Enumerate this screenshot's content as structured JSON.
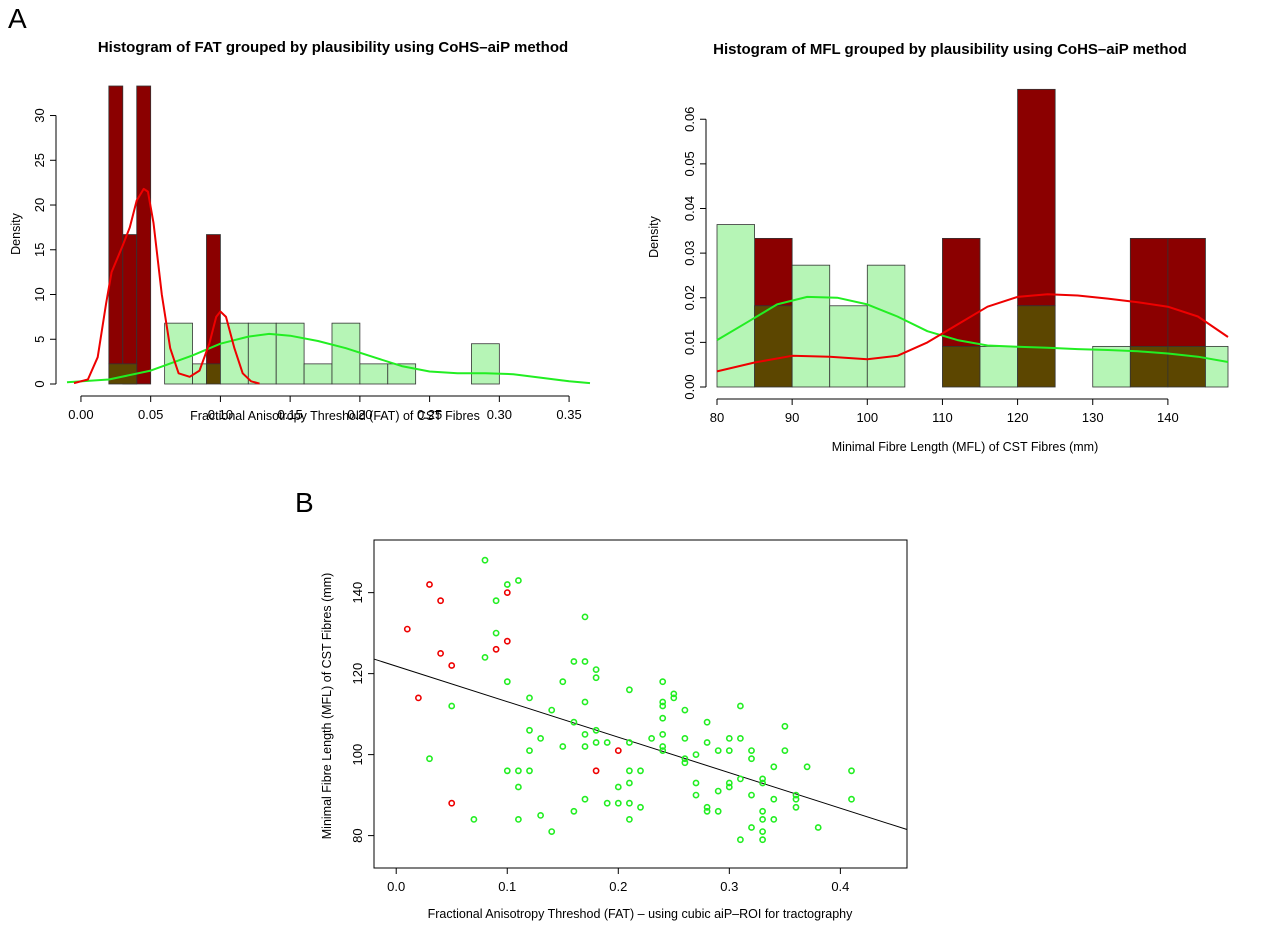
{
  "panels": {
    "a": "A",
    "b": "B"
  },
  "colors": {
    "implausible_fill": "#8b0000",
    "plausible_fill": "#b6f5b6",
    "overlap_fill": "#5c4600",
    "implausible_line": "#ee0000",
    "plausible_line": "#22ee22",
    "regression": "#000000"
  },
  "chart_data": [
    {
      "type": "bar",
      "title": "Histogram of FAT grouped by plausibility using CoHS–aiP method",
      "xlabel": "Fractional Anisotropy Threshold (FAT) of CST Fibres",
      "ylabel": "Density",
      "xlim": [
        -0.01,
        0.365
      ],
      "ylim": [
        0,
        33.3
      ],
      "xticks": [
        0,
        0.05,
        0.1,
        0.15,
        0.2,
        0.25,
        0.3,
        0.35
      ],
      "xtick_labels": [
        "0.00",
        "0.05",
        "0.10",
        "0.15",
        "0.20",
        "0.25",
        "0.30",
        "0.35"
      ],
      "yticks": [
        0,
        5,
        10,
        15,
        20,
        25,
        30
      ],
      "ytick_labels": [
        "0",
        "5",
        "10",
        "15",
        "20",
        "25",
        "30"
      ],
      "grid": false,
      "series": [
        {
          "name": "",
          "bins": [
            [
              0.02,
              0.03,
              33.3
            ],
            [
              0.03,
              0.04,
              16.7
            ],
            [
              0.04,
              0.05,
              33.3
            ],
            [
              0.09,
              0.1,
              16.7
            ]
          ],
          "density_curve": [
            [
              -0.005,
              0.1
            ],
            [
              0.005,
              0.5
            ],
            [
              0.012,
              3
            ],
            [
              0.018,
              9
            ],
            [
              0.022,
              12.5
            ],
            [
              0.03,
              15.5
            ],
            [
              0.035,
              17.5
            ],
            [
              0.04,
              20.5
            ],
            [
              0.045,
              21.8
            ],
            [
              0.048,
              21.5
            ],
            [
              0.052,
              18
            ],
            [
              0.058,
              10
            ],
            [
              0.064,
              4
            ],
            [
              0.07,
              1.2
            ],
            [
              0.078,
              0.8
            ],
            [
              0.085,
              1.5
            ],
            [
              0.092,
              4.5
            ],
            [
              0.097,
              7.5
            ],
            [
              0.1,
              8.1
            ],
            [
              0.104,
              7.5
            ],
            [
              0.11,
              4
            ],
            [
              0.116,
              1.2
            ],
            [
              0.122,
              0.3
            ],
            [
              0.128,
              0.05
            ]
          ]
        },
        {
          "name": "",
          "bins": [
            [
              0.02,
              0.04,
              2.25
            ],
            [
              0.06,
              0.08,
              6.8
            ],
            [
              0.08,
              0.09,
              2.25
            ],
            [
              0.09,
              0.1,
              2.25
            ],
            [
              0.1,
              0.12,
              6.8
            ],
            [
              0.12,
              0.14,
              6.8
            ],
            [
              0.14,
              0.16,
              6.8
            ],
            [
              0.16,
              0.18,
              2.25
            ],
            [
              0.18,
              0.2,
              6.8
            ],
            [
              0.2,
              0.22,
              2.25
            ],
            [
              0.22,
              0.24,
              2.25
            ],
            [
              0.28,
              0.3,
              4.5
            ]
          ],
          "density_curve": [
            [
              -0.01,
              0.2
            ],
            [
              0.02,
              0.5
            ],
            [
              0.05,
              1.5
            ],
            [
              0.08,
              3.2
            ],
            [
              0.1,
              4.5
            ],
            [
              0.12,
              5.3
            ],
            [
              0.135,
              5.6
            ],
            [
              0.15,
              5.4
            ],
            [
              0.17,
              4.8
            ],
            [
              0.19,
              4
            ],
            [
              0.21,
              3
            ],
            [
              0.23,
              2
            ],
            [
              0.25,
              1.4
            ],
            [
              0.27,
              1.2
            ],
            [
              0.29,
              1.2
            ],
            [
              0.31,
              1.1
            ],
            [
              0.33,
              0.7
            ],
            [
              0.35,
              0.3
            ],
            [
              0.365,
              0.1
            ]
          ]
        }
      ]
    },
    {
      "type": "bar",
      "title": "Histogram of MFL grouped by plausibility using CoHS–aiP method",
      "xlabel": "Minimal Fibre Length (MFL) of CST Fibres (mm)",
      "ylabel": "Density",
      "xlim": [
        80,
        148
      ],
      "ylim": [
        0,
        0.067
      ],
      "xticks": [
        80,
        90,
        100,
        110,
        120,
        130,
        140
      ],
      "xtick_labels": [
        "80",
        "90",
        "100",
        "110",
        "120",
        "130",
        "140"
      ],
      "yticks": [
        0,
        0.01,
        0.02,
        0.03,
        0.04,
        0.05,
        0.06
      ],
      "ytick_labels": [
        "0.00",
        "0.01",
        "0.02",
        "0.03",
        "0.04",
        "0.05",
        "0.06"
      ],
      "grid": false,
      "series": [
        {
          "name": "",
          "bins": [
            [
              85,
              90,
              0.0333
            ],
            [
              110,
              115,
              0.0333
            ],
            [
              120,
              125,
              0.0667
            ],
            [
              135,
              140,
              0.0333
            ],
            [
              140,
              145,
              0.0333
            ]
          ],
          "density_curve": [
            [
              80,
              0.0035
            ],
            [
              85,
              0.0055
            ],
            [
              90,
              0.007
            ],
            [
              95,
              0.0068
            ],
            [
              100,
              0.0062
            ],
            [
              104,
              0.007
            ],
            [
              108,
              0.01
            ],
            [
              112,
              0.014
            ],
            [
              116,
              0.018
            ],
            [
              120,
              0.0202
            ],
            [
              124,
              0.0208
            ],
            [
              128,
              0.0205
            ],
            [
              132,
              0.0198
            ],
            [
              136,
              0.019
            ],
            [
              140,
              0.018
            ],
            [
              144,
              0.0158
            ],
            [
              148,
              0.0112
            ]
          ]
        },
        {
          "name": "",
          "bins": [
            [
              80,
              85,
              0.0364
            ],
            [
              85,
              90,
              0.0182
            ],
            [
              90,
              95,
              0.0273
            ],
            [
              95,
              100,
              0.0182
            ],
            [
              100,
              105,
              0.0273
            ],
            [
              110,
              115,
              0.0091
            ],
            [
              115,
              120,
              0.0091
            ],
            [
              120,
              125,
              0.0182
            ],
            [
              130,
              135,
              0.0091
            ],
            [
              135,
              140,
              0.0091
            ],
            [
              140,
              145,
              0.0091
            ],
            [
              145,
              148,
              0.0091
            ]
          ],
          "density_curve": [
            [
              80,
              0.0105
            ],
            [
              84,
              0.0145
            ],
            [
              88,
              0.0185
            ],
            [
              92,
              0.0202
            ],
            [
              96,
              0.02
            ],
            [
              100,
              0.0185
            ],
            [
              104,
              0.0158
            ],
            [
              108,
              0.0125
            ],
            [
              112,
              0.0105
            ],
            [
              116,
              0.0093
            ],
            [
              120,
              0.009
            ],
            [
              124,
              0.0088
            ],
            [
              128,
              0.0085
            ],
            [
              132,
              0.0083
            ],
            [
              136,
              0.008
            ],
            [
              140,
              0.0075
            ],
            [
              144,
              0.0068
            ],
            [
              148,
              0.0056
            ]
          ]
        }
      ]
    },
    {
      "type": "scatter",
      "title": "",
      "xlabel": "Fractional Anisotropy Threshod (FAT) – using cubic aiP–ROI for tractography",
      "ylabel": "Minimal Fibre Length (MFL) of CST Fibres (mm)",
      "xlim": [
        -0.02,
        0.46
      ],
      "ylim": [
        72,
        153
      ],
      "xticks": [
        0,
        0.1,
        0.2,
        0.3,
        0.4
      ],
      "xtick_labels": [
        "0.0",
        "0.1",
        "0.2",
        "0.3",
        "0.4"
      ],
      "yticks": [
        80,
        100,
        120,
        140
      ],
      "ytick_labels": [
        "80",
        "100",
        "120",
        "140"
      ],
      "grid": false,
      "regression_line": [
        [
          -0.02,
          123.6
        ],
        [
          0.46,
          81.5
        ]
      ],
      "series": [
        {
          "name": "",
          "color": "#ee0000",
          "points": [
            [
              0.01,
              131
            ],
            [
              0.02,
              114
            ],
            [
              0.03,
              142
            ],
            [
              0.04,
              138
            ],
            [
              0.04,
              125
            ],
            [
              0.05,
              122
            ],
            [
              0.05,
              88
            ],
            [
              0.09,
              126
            ],
            [
              0.1,
              140
            ],
            [
              0.1,
              128
            ],
            [
              0.18,
              96
            ],
            [
              0.2,
              101
            ]
          ]
        },
        {
          "name": "",
          "color": "#22ee22",
          "points": [
            [
              0.03,
              99
            ],
            [
              0.05,
              112
            ],
            [
              0.07,
              84
            ],
            [
              0.08,
              148
            ],
            [
              0.08,
              124
            ],
            [
              0.09,
              138
            ],
            [
              0.09,
              130
            ],
            [
              0.1,
              142
            ],
            [
              0.1,
              118
            ],
            [
              0.1,
              96
            ],
            [
              0.11,
              143
            ],
            [
              0.11,
              96
            ],
            [
              0.11,
              92
            ],
            [
              0.11,
              84
            ],
            [
              0.12,
              114
            ],
            [
              0.12,
              106
            ],
            [
              0.12,
              101
            ],
            [
              0.12,
              96
            ],
            [
              0.13,
              104
            ],
            [
              0.13,
              85
            ],
            [
              0.14,
              111
            ],
            [
              0.14,
              81
            ],
            [
              0.15,
              118
            ],
            [
              0.15,
              102
            ],
            [
              0.16,
              123
            ],
            [
              0.16,
              108
            ],
            [
              0.16,
              86
            ],
            [
              0.17,
              134
            ],
            [
              0.17,
              123
            ],
            [
              0.17,
              113
            ],
            [
              0.17,
              105
            ],
            [
              0.17,
              102
            ],
            [
              0.17,
              89
            ],
            [
              0.18,
              121
            ],
            [
              0.18,
              119
            ],
            [
              0.18,
              106
            ],
            [
              0.18,
              103
            ],
            [
              0.19,
              103
            ],
            [
              0.19,
              88
            ],
            [
              0.2,
              92
            ],
            [
              0.2,
              88
            ],
            [
              0.21,
              116
            ],
            [
              0.21,
              103
            ],
            [
              0.21,
              96
            ],
            [
              0.21,
              93
            ],
            [
              0.21,
              88
            ],
            [
              0.21,
              84
            ],
            [
              0.22,
              96
            ],
            [
              0.22,
              87
            ],
            [
              0.23,
              104
            ],
            [
              0.24,
              118
            ],
            [
              0.24,
              113
            ],
            [
              0.24,
              112
            ],
            [
              0.24,
              109
            ],
            [
              0.24,
              105
            ],
            [
              0.24,
              102
            ],
            [
              0.24,
              101
            ],
            [
              0.25,
              115
            ],
            [
              0.25,
              114
            ],
            [
              0.26,
              111
            ],
            [
              0.26,
              104
            ],
            [
              0.26,
              99
            ],
            [
              0.26,
              98
            ],
            [
              0.27,
              100
            ],
            [
              0.27,
              93
            ],
            [
              0.27,
              90
            ],
            [
              0.28,
              108
            ],
            [
              0.28,
              103
            ],
            [
              0.28,
              87
            ],
            [
              0.28,
              86
            ],
            [
              0.29,
              101
            ],
            [
              0.29,
              91
            ],
            [
              0.29,
              86
            ],
            [
              0.3,
              104
            ],
            [
              0.3,
              101
            ],
            [
              0.3,
              93
            ],
            [
              0.3,
              92
            ],
            [
              0.31,
              112
            ],
            [
              0.31,
              104
            ],
            [
              0.31,
              94
            ],
            [
              0.31,
              79
            ],
            [
              0.32,
              101
            ],
            [
              0.32,
              99
            ],
            [
              0.32,
              90
            ],
            [
              0.32,
              82
            ],
            [
              0.33,
              94
            ],
            [
              0.33,
              93
            ],
            [
              0.33,
              86
            ],
            [
              0.33,
              84
            ],
            [
              0.33,
              81
            ],
            [
              0.33,
              79
            ],
            [
              0.34,
              97
            ],
            [
              0.34,
              89
            ],
            [
              0.34,
              84
            ],
            [
              0.35,
              107
            ],
            [
              0.35,
              101
            ],
            [
              0.36,
              90
            ],
            [
              0.36,
              89
            ],
            [
              0.36,
              87
            ],
            [
              0.37,
              97
            ],
            [
              0.38,
              82
            ],
            [
              0.41,
              96
            ],
            [
              0.41,
              89
            ]
          ]
        }
      ]
    }
  ]
}
